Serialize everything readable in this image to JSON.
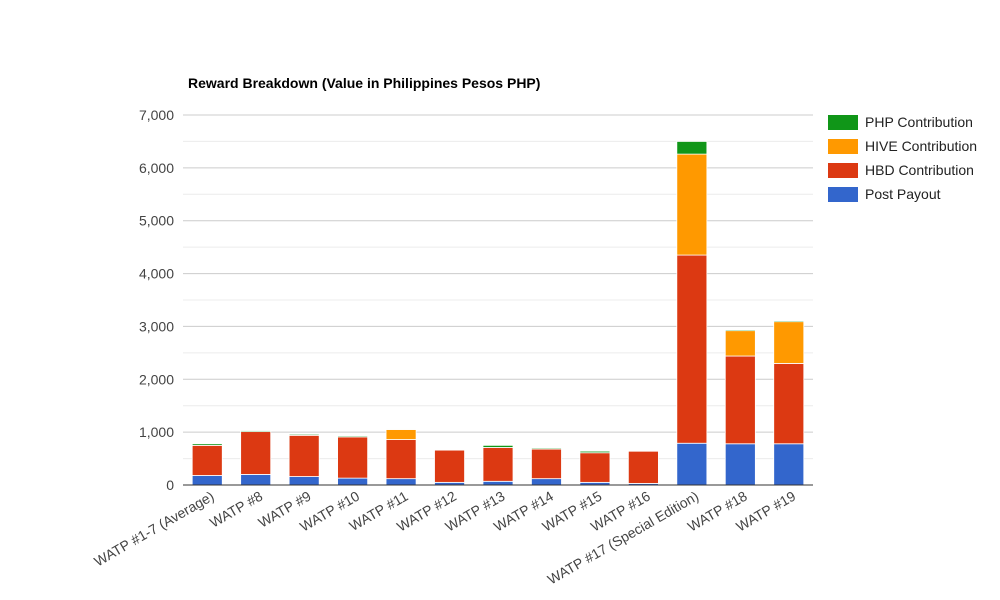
{
  "chart_data": {
    "type": "bar",
    "stacked": true,
    "title": "Reward Breakdown (Value in Philippines Pesos PHP)",
    "xlabel": "",
    "ylabel": "",
    "ylim": [
      0,
      7000
    ],
    "yticks": [
      0,
      1000,
      2000,
      3000,
      4000,
      5000,
      6000,
      7000
    ],
    "ytick_labels": [
      "0",
      "1,000",
      "2,000",
      "3,000",
      "4,000",
      "5,000",
      "6,000",
      "7,000"
    ],
    "grid": true,
    "legend_position": "right",
    "categories": [
      "WATP #1-7 (Average)",
      "WATP #8",
      "WATP #9",
      "WATP #10",
      "WATP #11",
      "WATP #12",
      "WATP #13",
      "WATP #14",
      "WATP #15",
      "WATP #16",
      "WATP #17 (Special Edition)",
      "WATP #18",
      "WATP #19"
    ],
    "series": [
      {
        "name": "Post Payout",
        "color": "#3366cc",
        "values": [
          180,
          200,
          160,
          130,
          120,
          50,
          70,
          120,
          50,
          30,
          790,
          780,
          780
        ]
      },
      {
        "name": "HBD Contribution",
        "color": "#dc3912",
        "values": [
          570,
          810,
          780,
          780,
          740,
          610,
          640,
          560,
          560,
          610,
          3560,
          1660,
          1520
        ]
      },
      {
        "name": "HIVE Contribution",
        "color": "#ff9900",
        "values": [
          0,
          0,
          0,
          0,
          190,
          0,
          0,
          0,
          0,
          0,
          1910,
          480,
          790
        ]
      },
      {
        "name": "PHP Contribution",
        "color": "#109618",
        "values": [
          30,
          20,
          20,
          20,
          10,
          10,
          40,
          20,
          30,
          10,
          240,
          20,
          20
        ]
      }
    ]
  }
}
